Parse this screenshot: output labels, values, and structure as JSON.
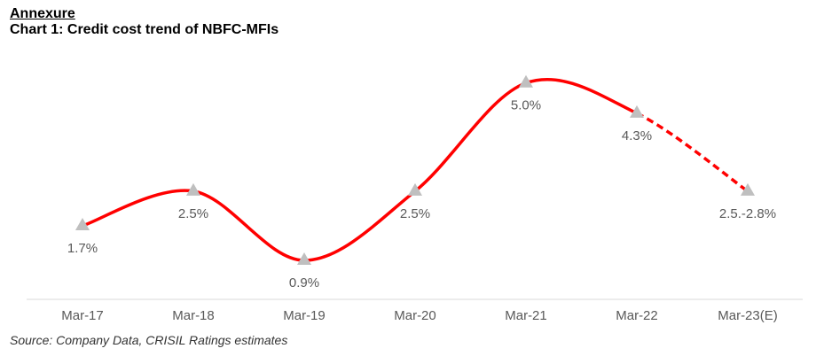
{
  "heading": "Annexure",
  "chart_data": {
    "type": "line",
    "title": "Chart 1: Credit cost trend of NBFC-MFIs",
    "categories": [
      "Mar-17",
      "Mar-18",
      "Mar-19",
      "Mar-20",
      "Mar-21",
      "Mar-22",
      "Mar-23(E)"
    ],
    "values": [
      1.7,
      2.5,
      0.9,
      2.5,
      5.0,
      4.3,
      2.5
    ],
    "data_labels": [
      "1.7%",
      "2.5%",
      "0.9%",
      "2.5%",
      "5.0%",
      "4.3%",
      "2.5.-2.8%"
    ],
    "estimated_from_index": 5,
    "xlabel": "",
    "ylabel": "",
    "ylim": [
      0,
      6.1
    ],
    "y_axis_visible": false,
    "grid": false,
    "smooth": true,
    "line_color": "#ff0000",
    "marker": "triangle",
    "marker_color": "#bfbfbf"
  },
  "source": "Source: Company Data, CRISIL Ratings estimates"
}
